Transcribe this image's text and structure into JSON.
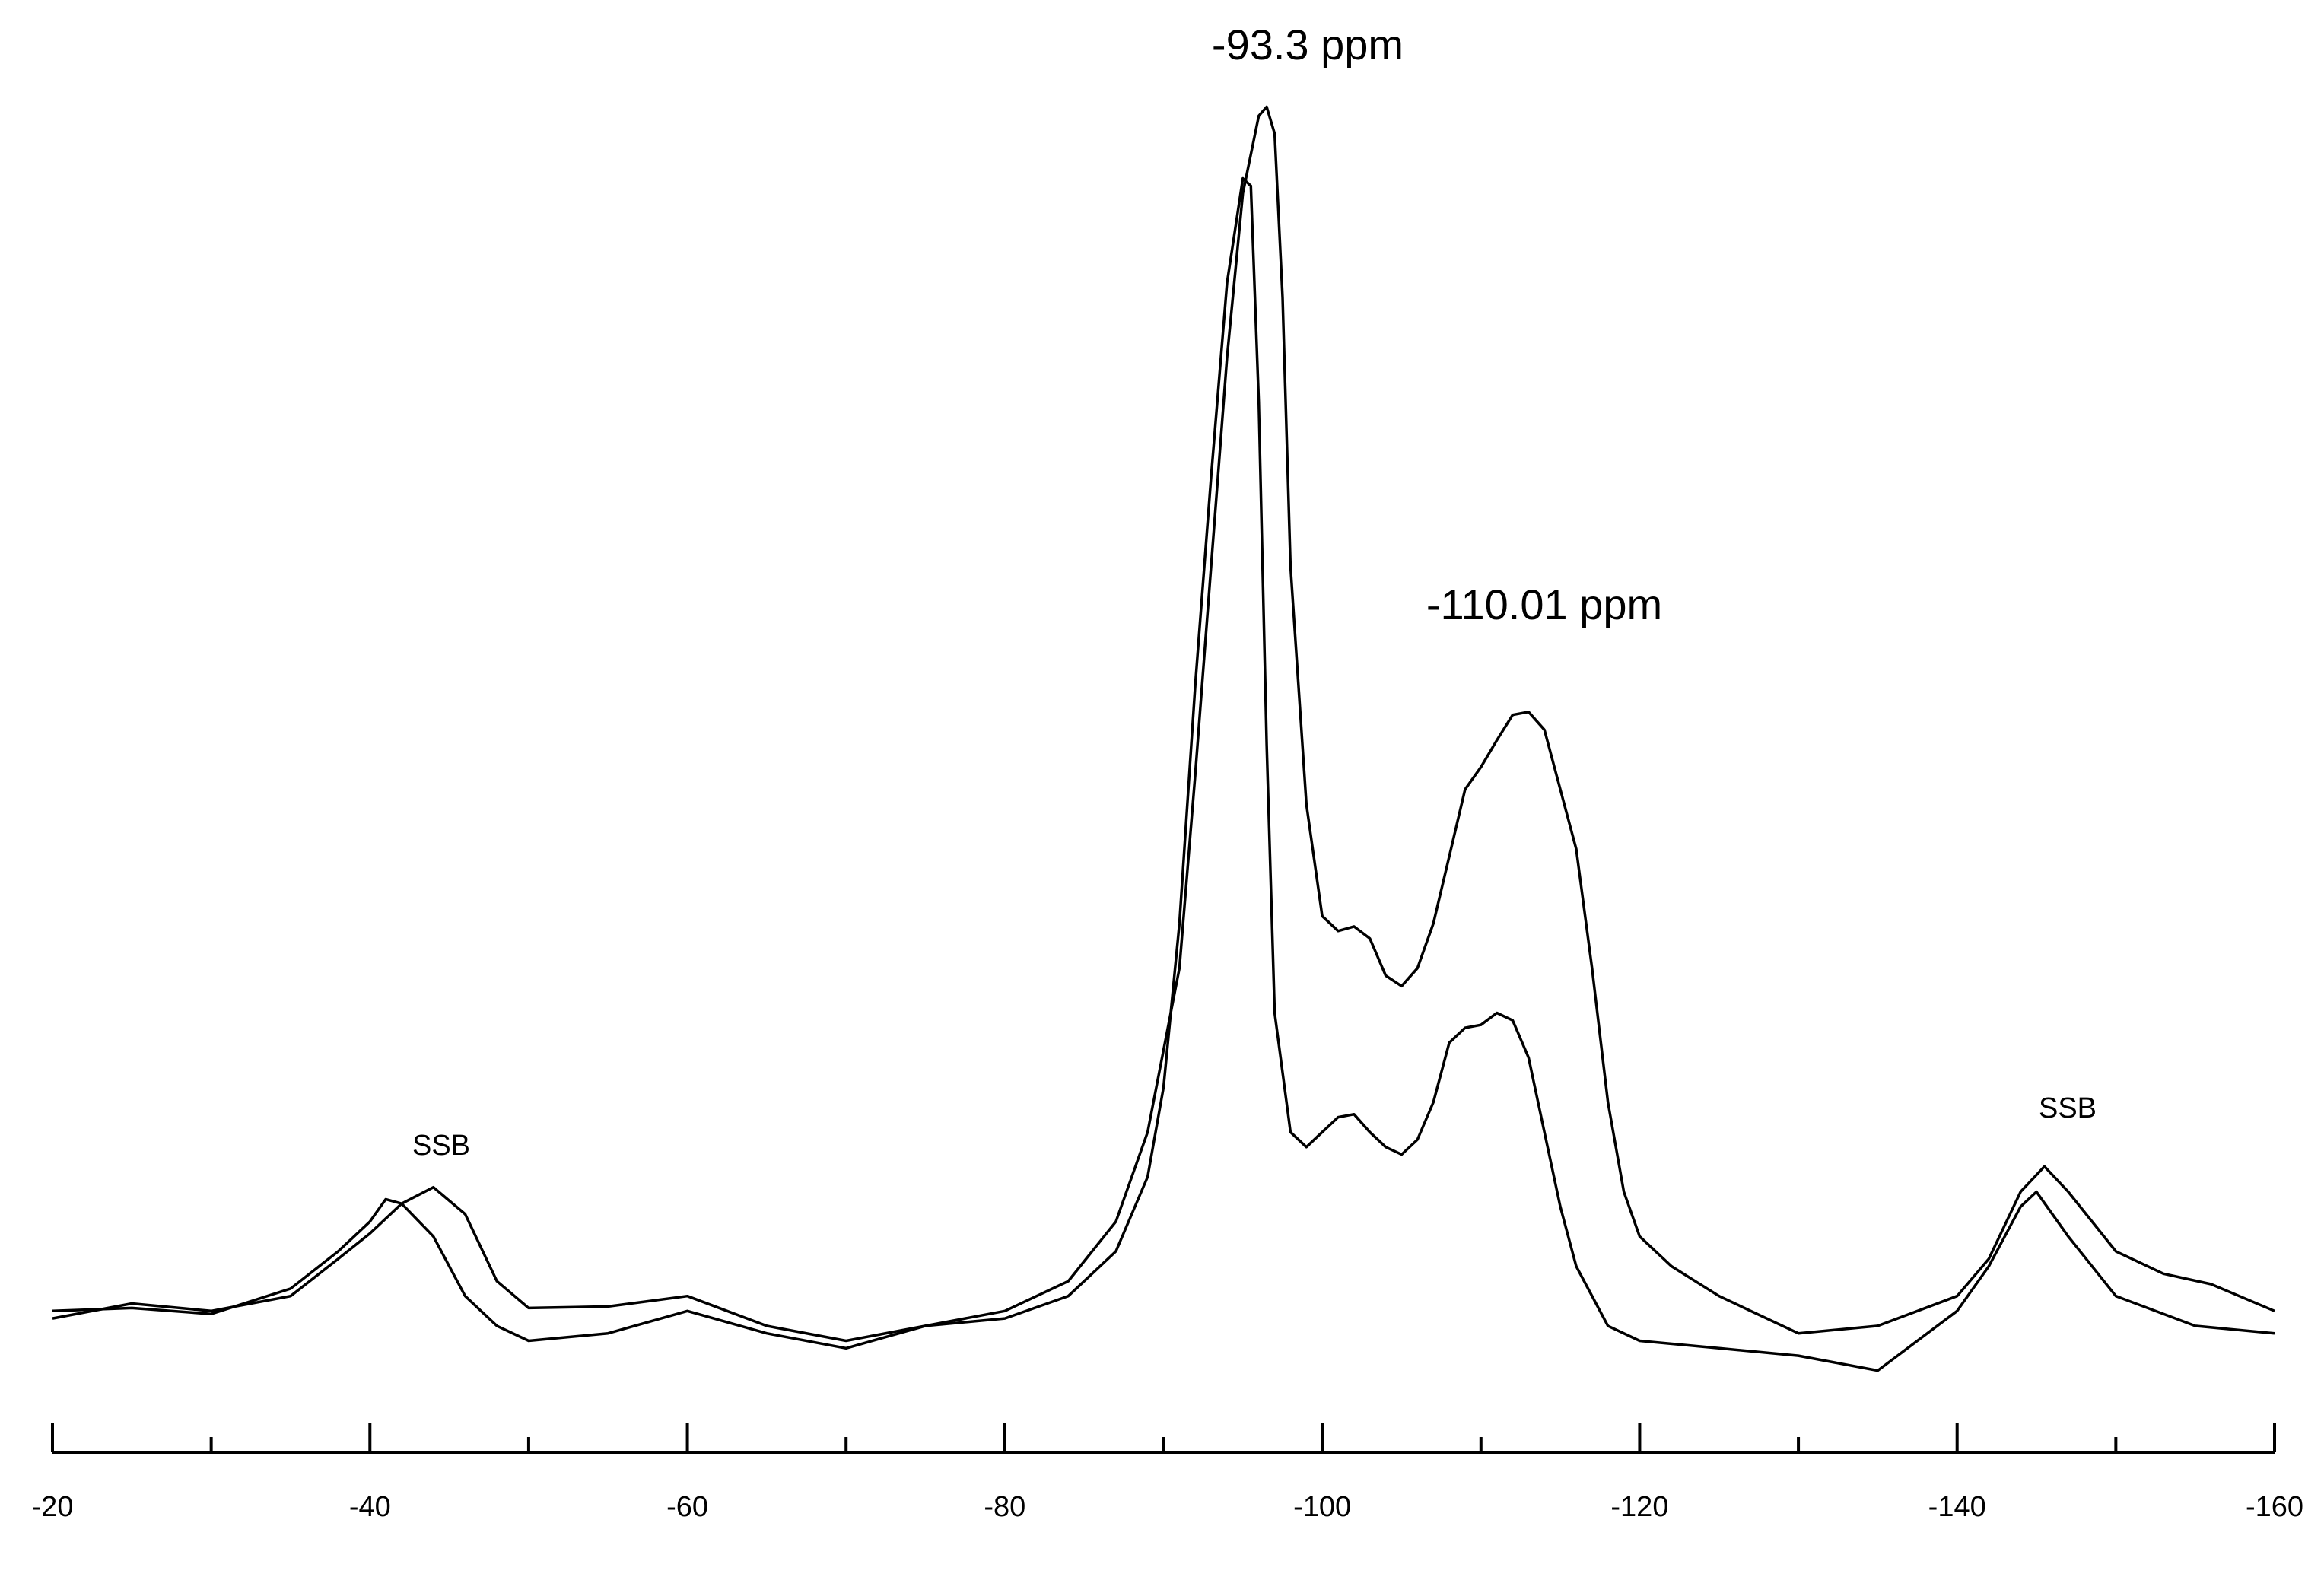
{
  "chart_data": {
    "type": "line",
    "annotations": [
      "-93.3 ppm",
      "-110.01 ppm",
      "SSB",
      "SSB"
    ],
    "xlim": [
      -20,
      -160
    ],
    "xticks": [
      -20,
      -40,
      -60,
      -80,
      -100,
      -120,
      -140,
      -160
    ],
    "xminor_ticks": [
      -30,
      -50,
      -70,
      -90,
      -110,
      -130,
      -150
    ],
    "ylim": [
      0,
      900
    ],
    "series": [
      {
        "color": "#000000",
        "x": [
          -20,
          -25,
          -30,
          -35,
          -38,
          -40,
          -42,
          -44,
          -46,
          -48,
          -50,
          -55,
          -60,
          -65,
          -70,
          -75,
          -80,
          -84,
          -87,
          -89,
          -91,
          -92,
          -93,
          -94,
          -95,
          -96,
          -96.5,
          -97,
          -97.5,
          -98,
          -99,
          -100,
          -101,
          -102,
          -103,
          -104,
          -105,
          -106,
          -107,
          -108,
          -109,
          -110,
          -111,
          -112,
          -113,
          -114,
          -115,
          -116,
          -117,
          -118,
          -119,
          -120,
          -122,
          -125,
          -130,
          -135,
          -140,
          -142,
          -144,
          -145.5,
          -147,
          -150,
          -153,
          -156,
          -160
        ],
        "values": [
          75,
          85,
          80,
          90,
          115,
          132,
          152,
          163,
          145,
          100,
          82,
          83,
          90,
          70,
          60,
          70,
          80,
          100,
          140,
          200,
          310,
          440,
          580,
          720,
          830,
          882,
          888,
          870,
          760,
          580,
          420,
          345,
          335,
          338,
          330,
          305,
          298,
          310,
          340,
          385,
          430,
          445,
          463,
          480,
          482,
          470,
          430,
          390,
          310,
          220,
          160,
          130,
          110,
          90,
          65,
          70,
          90,
          115,
          160,
          177,
          160,
          120,
          105,
          98,
          80
        ]
      },
      {
        "color": "#000000",
        "x": [
          -20,
          -25,
          -30,
          -35,
          -38,
          -40,
          -41,
          -42,
          -44,
          -46,
          -48,
          -50,
          -55,
          -60,
          -65,
          -70,
          -75,
          -80,
          -84,
          -87,
          -89,
          -90,
          -91,
          -92,
          -93,
          -94,
          -95,
          -95.5,
          -96,
          -96.5,
          -97,
          -98,
          -99,
          -100,
          -101,
          -102,
          -103,
          -104,
          -105,
          -106,
          -107,
          -108,
          -109,
          -110,
          -111,
          -112,
          -113,
          -114,
          -115,
          -116,
          -118,
          -120,
          -125,
          -130,
          -135,
          -140,
          -142,
          -144,
          -145,
          -147,
          -150,
          -155,
          -160
        ],
        "values": [
          80,
          82,
          78,
          95,
          120,
          140,
          155,
          152,
          130,
          90,
          70,
          60,
          65,
          80,
          65,
          55,
          70,
          75,
          90,
          120,
          170,
          230,
          340,
          500,
          640,
          770,
          840,
          835,
          690,
          460,
          280,
          200,
          190,
          200,
          210,
          212,
          200,
          190,
          185,
          195,
          220,
          260,
          270,
          272,
          280,
          275,
          250,
          200,
          150,
          110,
          70,
          60,
          55,
          50,
          40,
          80,
          110,
          150,
          160,
          130,
          90,
          70,
          65
        ]
      }
    ]
  }
}
